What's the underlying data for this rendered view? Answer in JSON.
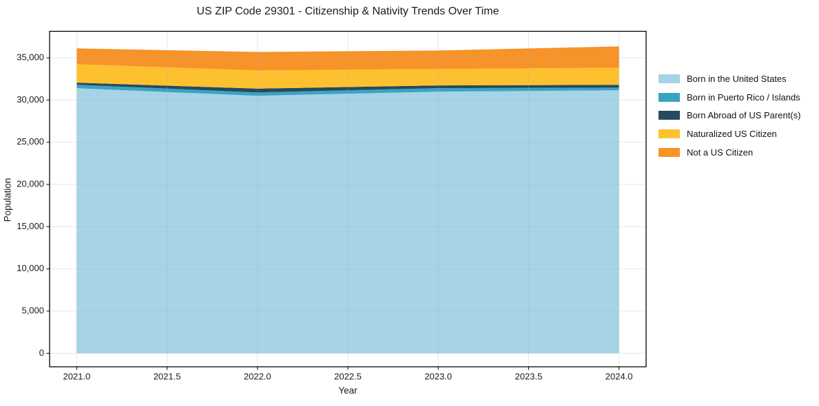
{
  "page": {
    "background": "#ffffff",
    "text_color": "#1a1a1a"
  },
  "chart_data": {
    "type": "area",
    "stacked": true,
    "title": "US ZIP Code 29301 - Citizenship & Nativity Trends Over Time",
    "xlabel": "Year",
    "ylabel": "Population",
    "x": [
      2021,
      2022,
      2023,
      2024
    ],
    "series": [
      {
        "name": "Born in the United States",
        "color": "#a6d3e6",
        "values": [
          31400,
          30500,
          31000,
          31150
        ]
      },
      {
        "name": "Born in Puerto Rico / Islands",
        "color": "#3ba3c2",
        "values": [
          410,
          400,
          400,
          320
        ]
      },
      {
        "name": "Born Abroad of US Parent(s)",
        "color": "#254a5e",
        "values": [
          250,
          450,
          330,
          330
        ]
      },
      {
        "name": "Naturalized US Citizen",
        "color": "#fdc130",
        "values": [
          2190,
          2150,
          1950,
          2030
        ]
      },
      {
        "name": "Not a US Citizen",
        "color": "#f79329",
        "values": [
          1870,
          2190,
          2190,
          2520
        ]
      }
    ],
    "totals": [
      36120,
      35690,
      35870,
      36350
    ],
    "xticks": [
      2021.0,
      2021.5,
      2022.0,
      2022.5,
      2023.0,
      2023.5,
      2024.0
    ],
    "xtick_labels": [
      "2021.0",
      "2021.5",
      "2022.0",
      "2022.5",
      "2023.0",
      "2023.5",
      "2024.0"
    ],
    "yticks": [
      0,
      5000,
      10000,
      15000,
      20000,
      25000,
      30000,
      35000
    ],
    "ytick_labels": [
      "0",
      "5,000",
      "10,000",
      "15,000",
      "20,000",
      "25,000",
      "30,000",
      "35,000"
    ],
    "xlim": [
      2020.85,
      2024.15
    ],
    "ylim": [
      -1600,
      38140
    ],
    "grid": true,
    "grid_color": "#b0b0b0",
    "grid_alpha": 0.3,
    "spine_color": "#000000",
    "legend_position": "right-outside"
  }
}
